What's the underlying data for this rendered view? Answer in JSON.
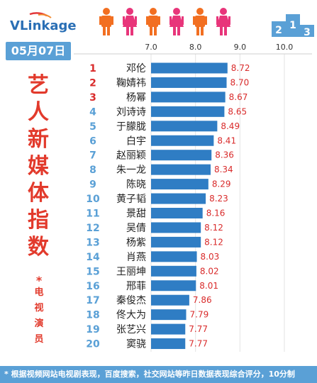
{
  "logo": {
    "text": "VLinkage"
  },
  "date": "05月07日",
  "title_chars": [
    "艺",
    "人",
    "新",
    "媒",
    "体",
    "指",
    "数"
  ],
  "subtitle_chars": [
    "电",
    "视",
    "演",
    "员"
  ],
  "footer": "* 根据视频网站电视剧表现，百度搜索，社交网站等昨日数据表现综合评分，10分制",
  "colors": {
    "bar": "#2f7dc4",
    "rank": "#d92b2b",
    "value": "#d92b2b",
    "accent": "#5aa0d6",
    "figure_orange": "#f26f21",
    "figure_pink": "#e8357a"
  },
  "podium": {
    "labels": [
      "2",
      "1",
      "3"
    ]
  },
  "chart_data": {
    "type": "bar",
    "orientation": "horizontal",
    "xlim": [
      7.0,
      10.0
    ],
    "ticks": [
      "7.0",
      "8.0",
      "9.0",
      "10.0"
    ],
    "ranks": [
      "1",
      "2",
      "3",
      "4",
      "5",
      "6",
      "7",
      "8",
      "9",
      "10",
      "11",
      "12",
      "13",
      "14",
      "15",
      "16",
      "17",
      "18",
      "19",
      "20"
    ],
    "categories": [
      "邓伦",
      "鞠婧祎",
      "杨幂",
      "刘诗诗",
      "于朦胧",
      "白宇",
      "赵丽颖",
      "朱一龙",
      "陈晓",
      "黄子韬",
      "景甜",
      "吴倩",
      "杨紫",
      "肖燕",
      "王丽坤",
      "邢菲",
      "秦俊杰",
      "佟大为",
      "张艺兴",
      "窦骁"
    ],
    "values": [
      8.72,
      8.7,
      8.67,
      8.65,
      8.49,
      8.41,
      8.36,
      8.34,
      8.29,
      8.23,
      8.16,
      8.12,
      8.12,
      8.03,
      8.02,
      8.01,
      7.86,
      7.79,
      7.77,
      7.77
    ],
    "value_labels": [
      "8.72",
      "8.70",
      "8.67",
      "8.65",
      "8.49",
      "8.41",
      "8.36",
      "8.34",
      "8.29",
      "8.23",
      "8.16",
      "8.12",
      "8.12",
      "8.03",
      "8.02",
      "8.01",
      "7.86",
      "7.79",
      "7.77",
      "7.77"
    ]
  }
}
